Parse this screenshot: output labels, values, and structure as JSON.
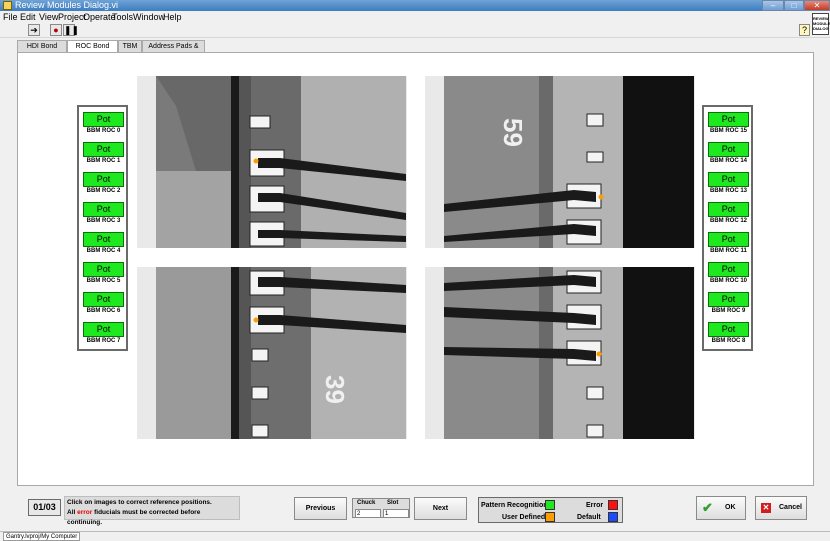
{
  "window": {
    "title": "Review Modules Dialog.vi"
  },
  "menu": [
    "File",
    "Edit",
    "View",
    "Project",
    "Operate",
    "Tools",
    "Window",
    "Help"
  ],
  "vi_icon_text": "REVIEW MODULE DIALOG",
  "tabs": [
    "HDI Bond Pads",
    "ROC Bond Pads",
    "TBM",
    "Address Pads & HV"
  ],
  "active_tab": "ROC Bond Pads",
  "left_rocs": [
    {
      "button": "Pot",
      "label": "BBM ROC 0"
    },
    {
      "button": "Pot",
      "label": "BBM ROC 1"
    },
    {
      "button": "Pot",
      "label": "BBM ROC 2"
    },
    {
      "button": "Pot",
      "label": "BBM ROC 3"
    },
    {
      "button": "Pot",
      "label": "BBM ROC 4"
    },
    {
      "button": "Pot",
      "label": "BBM ROC 5"
    },
    {
      "button": "Pot",
      "label": "BBM ROC 6"
    },
    {
      "button": "Pot",
      "label": "BBM ROC 7"
    }
  ],
  "right_rocs": [
    {
      "button": "Pot",
      "label": "BBM ROC 15"
    },
    {
      "button": "Pot",
      "label": "BBM ROC 14"
    },
    {
      "button": "Pot",
      "label": "BBM ROC 13"
    },
    {
      "button": "Pot",
      "label": "BBM ROC 12"
    },
    {
      "button": "Pot",
      "label": "BBM ROC 11"
    },
    {
      "button": "Pot",
      "label": "BBM ROC 10"
    },
    {
      "button": "Pot",
      "label": "BBM ROC 9"
    },
    {
      "button": "Pot",
      "label": "BBM ROC 8"
    }
  ],
  "images": {
    "top_right_number": "59",
    "bottom_left_number": "39"
  },
  "bottom": {
    "counter": "01/03",
    "info_line1": "Click on images to correct reference positions.",
    "info_line2_pre": "All ",
    "info_line2_err": "error",
    "info_line2_post": " fiducials must be corrected before continuing.",
    "previous": "Previous",
    "next": "Next",
    "chuck_label": "Chuck",
    "chuck_value": "2",
    "slot_label": "Slot",
    "slot_value": "1",
    "ok": "OK",
    "cancel": "Cancel"
  },
  "legend": {
    "pattern_recognition": "Pattern Recognition",
    "error": "Error",
    "user_defined": "User Defined",
    "default": "Default"
  },
  "colors": {
    "pattern_recognition": "#1ee81e",
    "error": "#ff1010",
    "user_defined": "#ff9c00",
    "default": "#1a4cff",
    "error_text": "#e40000",
    "pot_button": "#1ee81e"
  },
  "status": {
    "text": "Gantry.lvproj/My Computer"
  }
}
